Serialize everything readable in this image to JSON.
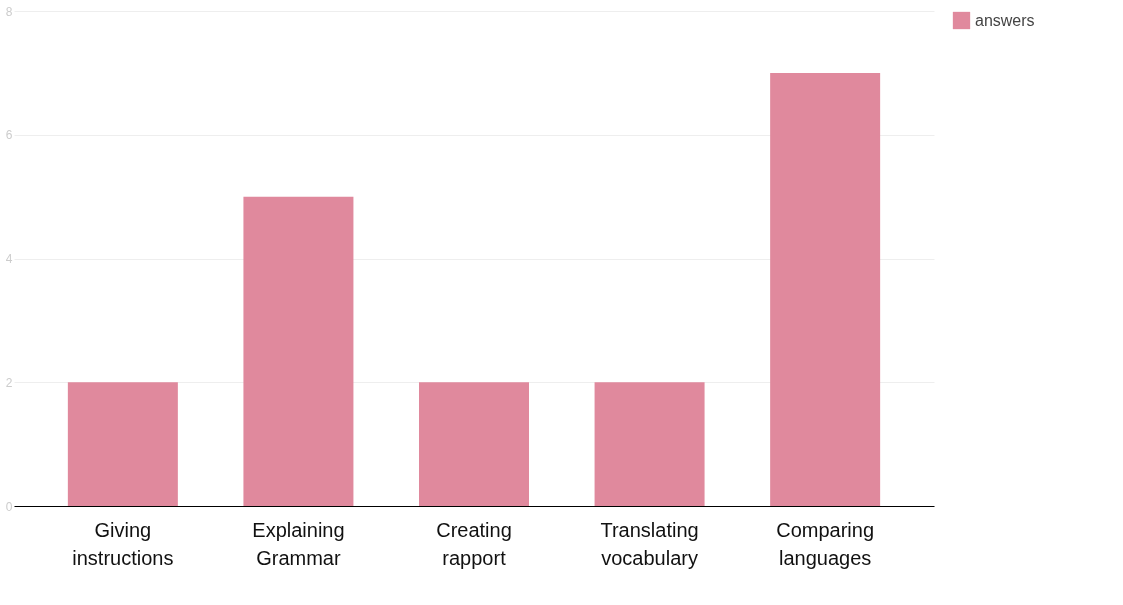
{
  "chart_data": {
    "type": "bar",
    "categories": [
      "Giving instructions",
      "Explaining Grammar",
      "Creating rapport",
      "Translating vocabulary",
      "Comparing languages"
    ],
    "series": [
      {
        "name": "answers",
        "color": "#e0899d",
        "values": [
          2,
          5,
          2,
          2,
          7
        ]
      }
    ],
    "ylim": [
      0,
      8
    ],
    "yticks": [
      0,
      2,
      4,
      6,
      8
    ],
    "grid": "y",
    "legend": "top right"
  }
}
